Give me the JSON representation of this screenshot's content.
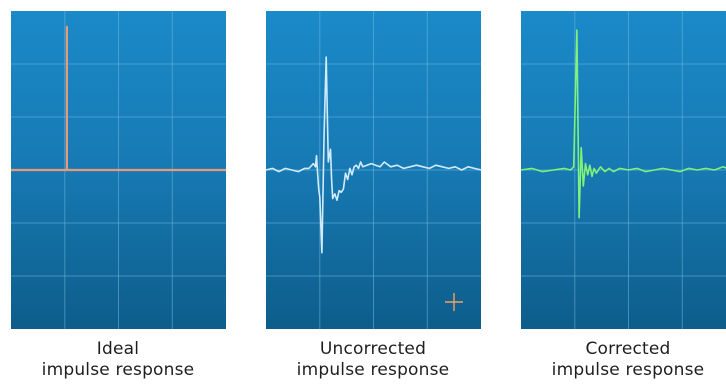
{
  "palette": {
    "panel_top": "#1a8ac8",
    "panel_bottom": "#0d5d8a",
    "grid": "#6fb6df",
    "ideal_trace": "#e69a7a",
    "uncorrected_trace": "#d2ecfb",
    "corrected_trace": "#7ef27a",
    "crosshair": "#f2a066"
  },
  "captions": {
    "ideal": {
      "line1": "Ideal",
      "line2": "impulse response"
    },
    "uncorrected": {
      "line1": "Uncorrected",
      "line2": "impulse response"
    },
    "corrected": {
      "line1": "Corrected",
      "line2": "impulse response"
    }
  },
  "chart_data": [
    {
      "type": "line",
      "grid": true,
      "grid_divisions": {
        "x": 4,
        "y": 6
      },
      "ylim": [
        -1,
        1
      ],
      "xlim": [
        0,
        1
      ],
      "series": [
        {
          "color": "#e69a7a",
          "x": [
            0,
            0.26,
            0.26,
            0.26,
            1
          ],
          "y": [
            0,
            0,
            0.9,
            0,
            0
          ]
        }
      ]
    },
    {
      "type": "line",
      "grid": true,
      "grid_divisions": {
        "x": 4,
        "y": 6
      },
      "ylim": [
        -1,
        1
      ],
      "xlim": [
        0,
        1
      ],
      "series": [
        {
          "color": "#d2ecfb",
          "x": [
            0,
            0.03,
            0.06,
            0.09,
            0.12,
            0.15,
            0.18,
            0.2,
            0.22,
            0.23,
            0.235,
            0.24,
            0.245,
            0.25,
            0.26,
            0.27,
            0.28,
            0.29,
            0.3,
            0.305,
            0.31,
            0.32,
            0.33,
            0.34,
            0.35,
            0.36,
            0.37,
            0.38,
            0.39,
            0.4,
            0.41,
            0.42,
            0.43,
            0.44,
            0.45,
            0.47,
            0.49,
            0.51,
            0.53,
            0.55,
            0.58,
            0.61,
            0.64,
            0.67,
            0.7,
            0.73,
            0.76,
            0.79,
            0.82,
            0.85,
            0.88,
            0.91,
            0.94,
            0.97,
            1.0
          ],
          "y": [
            0,
            0.01,
            -0.01,
            0.01,
            0,
            -0.01,
            0.01,
            0.01,
            0.04,
            0.02,
            0.09,
            -0.02,
            -0.12,
            -0.17,
            -0.52,
            0.23,
            0.71,
            0.05,
            0.13,
            -0.06,
            -0.18,
            -0.15,
            -0.19,
            -0.13,
            -0.14,
            -0.12,
            -0.02,
            -0.06,
            0.01,
            -0.03,
            0.02,
            0.03,
            0.01,
            0.05,
            0.02,
            0.03,
            0.04,
            0.03,
            0.02,
            0.05,
            0.02,
            0.03,
            0.01,
            0.02,
            0.03,
            0.02,
            0.01,
            0.03,
            0.02,
            0.01,
            0.02,
            0.0,
            0.02,
            0.01,
            0.0
          ]
        }
      ]
    },
    {
      "type": "line",
      "grid": true,
      "grid_divisions": {
        "x": 4,
        "y": 6
      },
      "ylim": [
        -1,
        1
      ],
      "xlim": [
        0,
        1
      ],
      "series": [
        {
          "color": "#7ef27a",
          "x": [
            0,
            0.05,
            0.1,
            0.15,
            0.2,
            0.23,
            0.245,
            0.26,
            0.27,
            0.28,
            0.29,
            0.3,
            0.31,
            0.32,
            0.33,
            0.34,
            0.35,
            0.37,
            0.39,
            0.41,
            0.43,
            0.46,
            0.5,
            0.54,
            0.58,
            0.62,
            0.66,
            0.7,
            0.74,
            0.78,
            0.82,
            0.86,
            0.9,
            0.94,
            0.98,
            1.0
          ],
          "y": [
            0,
            0.01,
            -0.01,
            0.0,
            0.01,
            0.0,
            0.02,
            0.88,
            -0.3,
            0.14,
            -0.1,
            0.04,
            -0.03,
            0.03,
            -0.04,
            0.01,
            -0.02,
            0.02,
            -0.01,
            0.01,
            -0.01,
            0.01,
            0.0,
            0.01,
            -0.01,
            0.0,
            0.01,
            0.0,
            -0.01,
            0.01,
            0.0,
            0.01,
            0.0,
            0.02,
            0.0,
            0.0
          ]
        }
      ]
    }
  ]
}
